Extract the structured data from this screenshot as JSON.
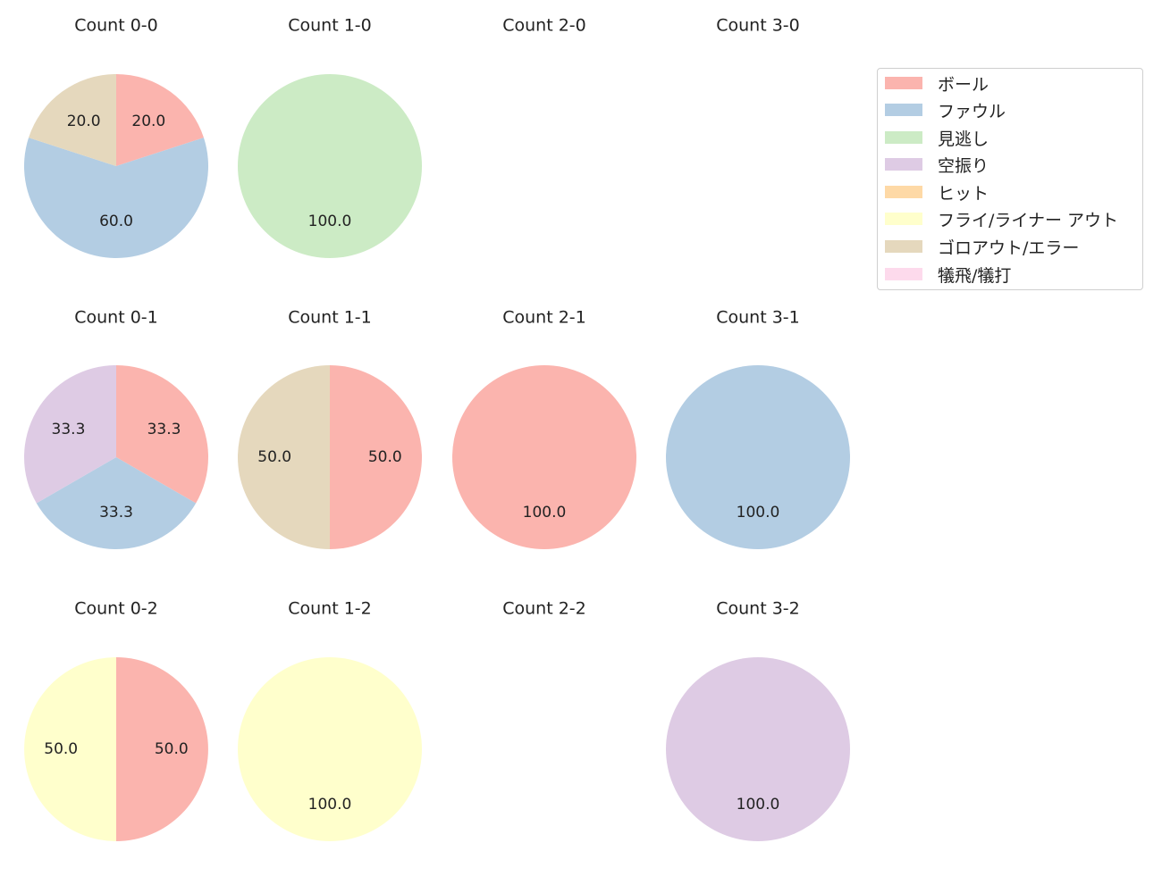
{
  "colors": {
    "ball": "#fbb4ae",
    "foul": "#b3cde3",
    "called_strike": "#ccebc5",
    "swinging_strike": "#decbe4",
    "hit": "#fed9a6",
    "fly_liner_out": "#ffffcc",
    "grounder_out_error": "#e5d8bd",
    "sacrifice": "#fddaec"
  },
  "legend": {
    "items": [
      {
        "key": "ball",
        "label": "ボール"
      },
      {
        "key": "foul",
        "label": "ファウル"
      },
      {
        "key": "called_strike",
        "label": "見逃し"
      },
      {
        "key": "swinging_strike",
        "label": "空振り"
      },
      {
        "key": "hit",
        "label": "ヒット"
      },
      {
        "key": "fly_liner_out",
        "label": "フライ/ライナー アウト"
      },
      {
        "key": "grounder_out_error",
        "label": "ゴロアウト/エラー"
      },
      {
        "key": "sacrifice",
        "label": "犠飛/犠打"
      }
    ]
  },
  "chart_data": [
    {
      "type": "pie",
      "title": "Count 0-0",
      "slices": [
        {
          "key": "ball",
          "value": 20.0,
          "label": "20.0"
        },
        {
          "key": "foul",
          "value": 60.0,
          "label": "60.0"
        },
        {
          "key": "grounder_out_error",
          "value": 20.0,
          "label": "20.0"
        }
      ]
    },
    {
      "type": "pie",
      "title": "Count 1-0",
      "slices": [
        {
          "key": "called_strike",
          "value": 100.0,
          "label": "100.0"
        }
      ]
    },
    {
      "type": "pie",
      "title": "Count 2-0",
      "slices": []
    },
    {
      "type": "pie",
      "title": "Count 3-0",
      "slices": []
    },
    {
      "type": "pie",
      "title": "Count 0-1",
      "slices": [
        {
          "key": "ball",
          "value": 33.3,
          "label": "33.3"
        },
        {
          "key": "foul",
          "value": 33.3,
          "label": "33.3"
        },
        {
          "key": "swinging_strike",
          "value": 33.3,
          "label": "33.3"
        }
      ]
    },
    {
      "type": "pie",
      "title": "Count 1-1",
      "slices": [
        {
          "key": "ball",
          "value": 50.0,
          "label": "50.0"
        },
        {
          "key": "grounder_out_error",
          "value": 50.0,
          "label": "50.0"
        }
      ]
    },
    {
      "type": "pie",
      "title": "Count 2-1",
      "slices": [
        {
          "key": "ball",
          "value": 100.0,
          "label": "100.0"
        }
      ]
    },
    {
      "type": "pie",
      "title": "Count 3-1",
      "slices": [
        {
          "key": "foul",
          "value": 100.0,
          "label": "100.0"
        }
      ]
    },
    {
      "type": "pie",
      "title": "Count 0-2",
      "slices": [
        {
          "key": "ball",
          "value": 50.0,
          "label": "50.0"
        },
        {
          "key": "fly_liner_out",
          "value": 50.0,
          "label": "50.0"
        }
      ]
    },
    {
      "type": "pie",
      "title": "Count 1-2",
      "slices": [
        {
          "key": "fly_liner_out",
          "value": 100.0,
          "label": "100.0"
        }
      ]
    },
    {
      "type": "pie",
      "title": "Count 2-2",
      "slices": []
    },
    {
      "type": "pie",
      "title": "Count 3-2",
      "slices": [
        {
          "key": "swinging_strike",
          "value": 100.0,
          "label": "100.0"
        }
      ]
    }
  ]
}
